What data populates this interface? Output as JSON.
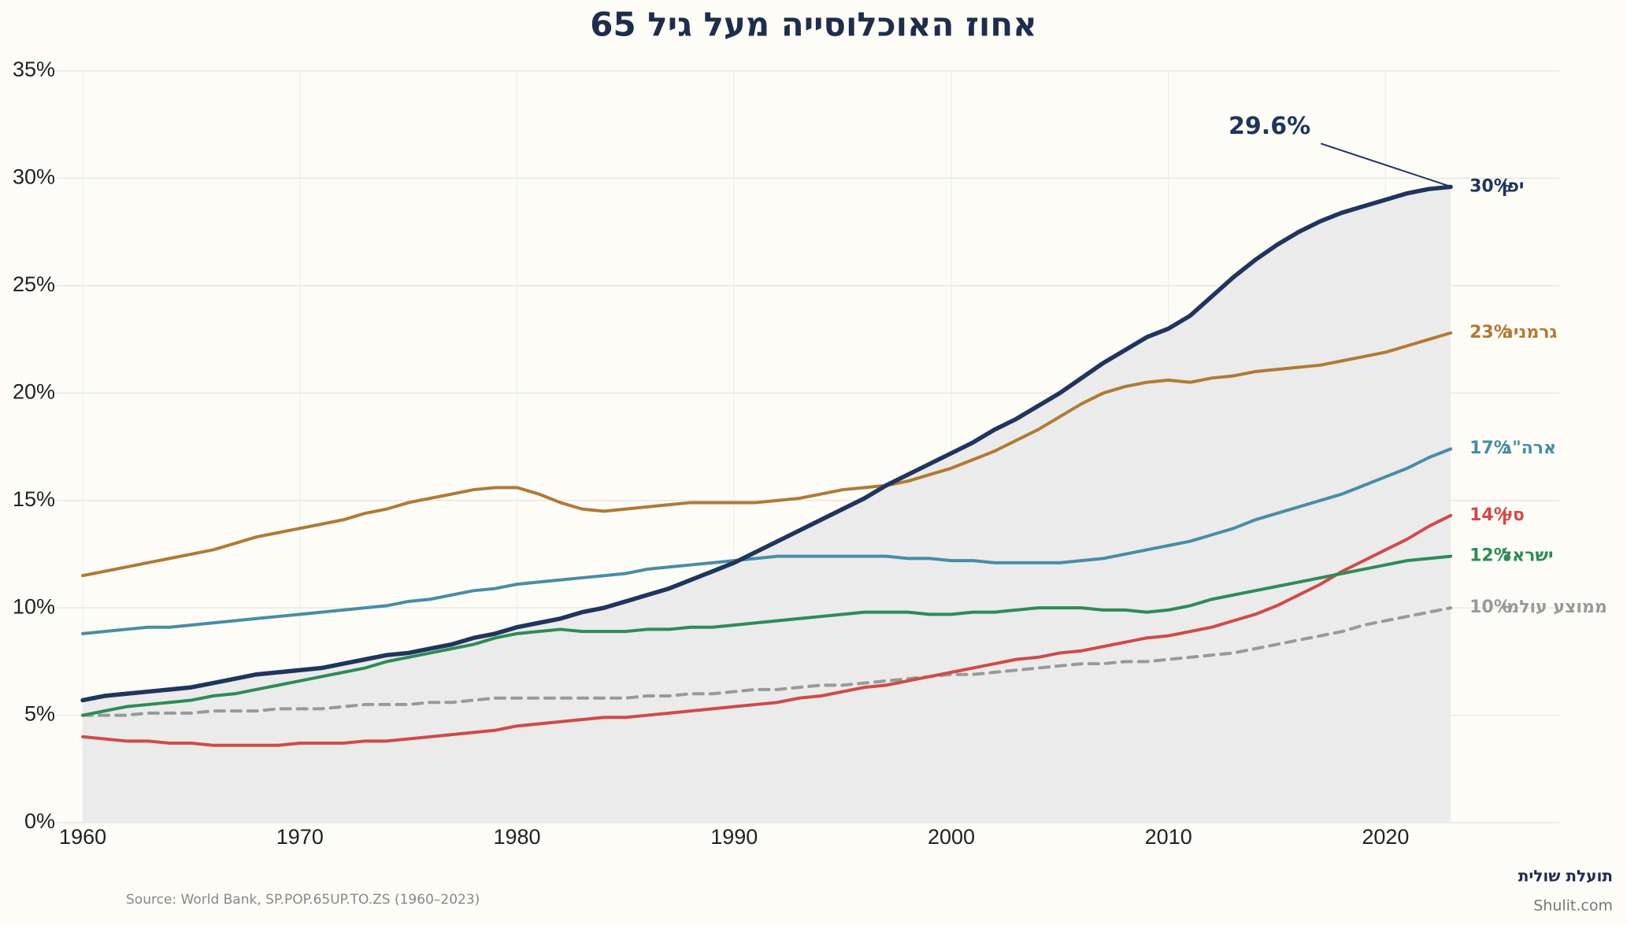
{
  "chart_data": {
    "type": "line",
    "title": "אחוז האוכלוסייה מעל גיל 65",
    "source": "Source: World Bank, SP.POP.65UP.TO.ZS (1960–2023)",
    "brand": "תועלת שולית",
    "website": "Shulit.com",
    "x": [
      1960,
      1961,
      1962,
      1963,
      1964,
      1965,
      1966,
      1967,
      1968,
      1969,
      1970,
      1971,
      1972,
      1973,
      1974,
      1975,
      1976,
      1977,
      1978,
      1979,
      1980,
      1981,
      1982,
      1983,
      1984,
      1985,
      1986,
      1987,
      1988,
      1989,
      1990,
      1991,
      1992,
      1993,
      1994,
      1995,
      1996,
      1997,
      1998,
      1999,
      2000,
      2001,
      2002,
      2003,
      2004,
      2005,
      2006,
      2007,
      2008,
      2009,
      2010,
      2011,
      2012,
      2013,
      2014,
      2015,
      2016,
      2017,
      2018,
      2019,
      2020,
      2021,
      2022,
      2023
    ],
    "xlim": [
      1958.8,
      2028
    ],
    "xticks": [
      1960,
      1970,
      1980,
      1990,
      2000,
      2010,
      2020
    ],
    "ylim": [
      0,
      35
    ],
    "yticks": [
      {
        "value": 0,
        "label": "0%"
      },
      {
        "value": 5,
        "label": "5%"
      },
      {
        "value": 10,
        "label": "10%"
      },
      {
        "value": 15,
        "label": "15%"
      },
      {
        "value": 20,
        "label": "20%"
      },
      {
        "value": 25,
        "label": "25%"
      },
      {
        "value": 30,
        "label": "30%"
      },
      {
        "value": 35,
        "label": "35%"
      }
    ],
    "grid": true,
    "series": [
      {
        "name": "ממוצע עולמי",
        "end_label": "10%",
        "color": "#999999",
        "dash": true,
        "values": [
          5.0,
          5.0,
          5.0,
          5.1,
          5.1,
          5.1,
          5.2,
          5.2,
          5.2,
          5.3,
          5.3,
          5.3,
          5.4,
          5.5,
          5.5,
          5.5,
          5.6,
          5.6,
          5.7,
          5.8,
          5.8,
          5.8,
          5.8,
          5.8,
          5.8,
          5.8,
          5.9,
          5.9,
          6.0,
          6.0,
          6.1,
          6.2,
          6.2,
          6.3,
          6.4,
          6.4,
          6.5,
          6.6,
          6.7,
          6.8,
          6.9,
          6.9,
          7.0,
          7.1,
          7.2,
          7.3,
          7.4,
          7.4,
          7.5,
          7.5,
          7.6,
          7.7,
          7.8,
          7.9,
          8.1,
          8.3,
          8.5,
          8.7,
          8.9,
          9.2,
          9.4,
          9.6,
          9.8,
          10.0
        ]
      },
      {
        "name": "סין",
        "end_label": "14%",
        "color": "#d04a4a",
        "values": [
          4.0,
          3.9,
          3.8,
          3.8,
          3.7,
          3.7,
          3.6,
          3.6,
          3.6,
          3.6,
          3.7,
          3.7,
          3.7,
          3.8,
          3.8,
          3.9,
          4.0,
          4.1,
          4.2,
          4.3,
          4.5,
          4.6,
          4.7,
          4.8,
          4.9,
          4.9,
          5.0,
          5.1,
          5.2,
          5.3,
          5.4,
          5.5,
          5.6,
          5.8,
          5.9,
          6.1,
          6.3,
          6.4,
          6.6,
          6.8,
          7.0,
          7.2,
          7.4,
          7.6,
          7.7,
          7.9,
          8.0,
          8.2,
          8.4,
          8.6,
          8.7,
          8.9,
          9.1,
          9.4,
          9.7,
          10.1,
          10.6,
          11.1,
          11.7,
          12.2,
          12.7,
          13.2,
          13.8,
          14.3
        ]
      },
      {
        "name": "ישראל",
        "end_label": "12%",
        "color": "#2e8b57",
        "values": [
          5.0,
          5.2,
          5.4,
          5.5,
          5.6,
          5.7,
          5.9,
          6.0,
          6.2,
          6.4,
          6.6,
          6.8,
          7.0,
          7.2,
          7.5,
          7.7,
          7.9,
          8.1,
          8.3,
          8.6,
          8.8,
          8.9,
          9.0,
          8.9,
          8.9,
          8.9,
          9.0,
          9.0,
          9.1,
          9.1,
          9.2,
          9.3,
          9.4,
          9.5,
          9.6,
          9.7,
          9.8,
          9.8,
          9.8,
          9.7,
          9.7,
          9.8,
          9.8,
          9.9,
          10.0,
          10.0,
          10.0,
          9.9,
          9.9,
          9.8,
          9.9,
          10.1,
          10.4,
          10.6,
          10.8,
          11.0,
          11.2,
          11.4,
          11.6,
          11.8,
          12.0,
          12.2,
          12.3,
          12.4
        ]
      },
      {
        "name": "ארה\"ב",
        "end_label": "17%",
        "color": "#4a8ca5",
        "values": [
          8.8,
          8.9,
          9.0,
          9.1,
          9.1,
          9.2,
          9.3,
          9.4,
          9.5,
          9.6,
          9.7,
          9.8,
          9.9,
          10.0,
          10.1,
          10.3,
          10.4,
          10.6,
          10.8,
          10.9,
          11.1,
          11.2,
          11.3,
          11.4,
          11.5,
          11.6,
          11.8,
          11.9,
          12.0,
          12.1,
          12.2,
          12.3,
          12.4,
          12.4,
          12.4,
          12.4,
          12.4,
          12.4,
          12.3,
          12.3,
          12.2,
          12.2,
          12.1,
          12.1,
          12.1,
          12.1,
          12.2,
          12.3,
          12.5,
          12.7,
          12.9,
          13.1,
          13.4,
          13.7,
          14.1,
          14.4,
          14.7,
          15.0,
          15.3,
          15.7,
          16.1,
          16.5,
          17.0,
          17.4
        ]
      },
      {
        "name": "גרמניה",
        "end_label": "23%",
        "color": "#b07a35",
        "values": [
          11.5,
          11.7,
          11.9,
          12.1,
          12.3,
          12.5,
          12.7,
          13.0,
          13.3,
          13.5,
          13.7,
          13.9,
          14.1,
          14.4,
          14.6,
          14.9,
          15.1,
          15.3,
          15.5,
          15.6,
          15.6,
          15.3,
          14.9,
          14.6,
          14.5,
          14.6,
          14.7,
          14.8,
          14.9,
          14.9,
          14.9,
          14.9,
          15.0,
          15.1,
          15.3,
          15.5,
          15.6,
          15.7,
          15.9,
          16.2,
          16.5,
          16.9,
          17.3,
          17.8,
          18.3,
          18.9,
          19.5,
          20.0,
          20.3,
          20.5,
          20.6,
          20.5,
          20.7,
          20.8,
          21.0,
          21.1,
          21.2,
          21.3,
          21.5,
          21.7,
          21.9,
          22.2,
          22.5,
          22.8
        ]
      },
      {
        "name": "יפן",
        "end_label": "30%",
        "color": "#1f355e",
        "fill": "#ebebeb",
        "values": [
          5.7,
          5.9,
          6.0,
          6.1,
          6.2,
          6.3,
          6.5,
          6.7,
          6.9,
          7.0,
          7.1,
          7.2,
          7.4,
          7.6,
          7.8,
          7.9,
          8.1,
          8.3,
          8.6,
          8.8,
          9.1,
          9.3,
          9.5,
          9.8,
          10.0,
          10.3,
          10.6,
          10.9,
          11.3,
          11.7,
          12.1,
          12.6,
          13.1,
          13.6,
          14.1,
          14.6,
          15.1,
          15.7,
          16.2,
          16.7,
          17.2,
          17.7,
          18.3,
          18.8,
          19.4,
          20.0,
          20.7,
          21.4,
          22.0,
          22.6,
          23.0,
          23.6,
          24.5,
          25.4,
          26.2,
          26.9,
          27.5,
          28.0,
          28.4,
          28.7,
          29.0,
          29.3,
          29.5,
          29.6
        ]
      }
    ],
    "annotations": [
      {
        "text": "29.6%",
        "x": 2023,
        "y": 29.6
      }
    ]
  }
}
